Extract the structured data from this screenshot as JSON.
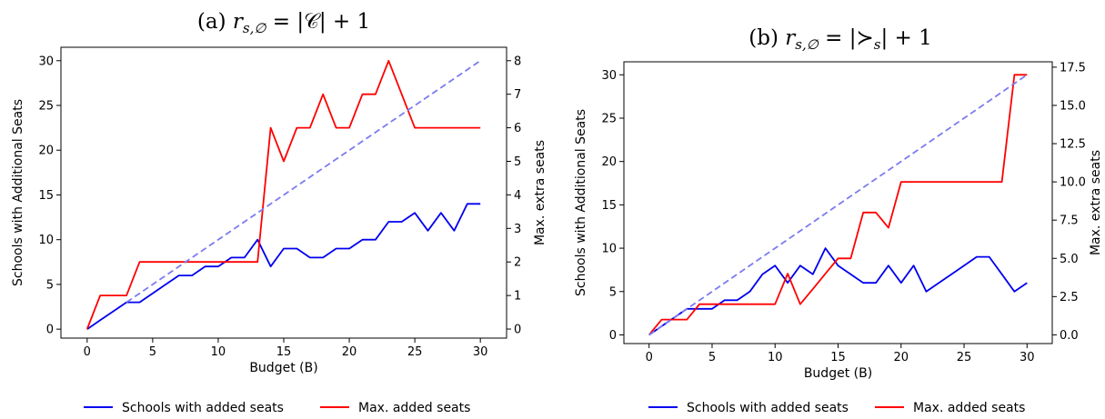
{
  "chart_data": [
    {
      "type": "line",
      "title": "(a) r_{s,∅} = |𝒞| + 1",
      "title_parts": {
        "prefix": "(a) ",
        "sym": "r",
        "sub": "s,∅",
        "rest": " = |𝒞| + 1"
      },
      "xlabel": "Budget (B)",
      "ylabel": "Schools with Additional Seats",
      "y2label": "Max. extra seats",
      "xlim": [
        -2,
        32
      ],
      "ylim": [
        -1,
        31.5
      ],
      "y2lim": [
        -0.27,
        8.4
      ],
      "xticks": [
        0,
        5,
        10,
        15,
        20,
        25,
        30
      ],
      "yticks": [
        0,
        5,
        10,
        15,
        20,
        25,
        30
      ],
      "y2ticks": [
        0,
        1,
        2,
        3,
        4,
        5,
        6,
        7,
        8
      ],
      "y2tick_labels": [
        "0",
        "1",
        "2",
        "3",
        "4",
        "5",
        "6",
        "7",
        "8"
      ],
      "x": [
        0,
        1,
        2,
        3,
        4,
        5,
        6,
        7,
        8,
        9,
        10,
        11,
        12,
        13,
        14,
        15,
        16,
        17,
        18,
        19,
        20,
        21,
        22,
        23,
        24,
        25,
        26,
        27,
        28,
        29,
        30
      ],
      "series": [
        {
          "name": "Schools with added seats",
          "color": "#0000ee",
          "axis": "left",
          "values": [
            0,
            1,
            2,
            3,
            3,
            4,
            5,
            6,
            6,
            7,
            7,
            8,
            8,
            10,
            7,
            9,
            9,
            8,
            8,
            9,
            9,
            10,
            10,
            12,
            12,
            13,
            11,
            13,
            11,
            14,
            14
          ]
        },
        {
          "name": "Max. added seats",
          "color": "#ff0000",
          "axis": "right",
          "values": [
            0,
            1,
            1,
            1,
            2,
            2,
            2,
            2,
            2,
            2,
            2,
            2,
            2,
            2,
            6,
            5,
            6,
            6,
            7,
            6,
            6,
            7,
            7,
            8,
            7,
            6,
            6,
            6,
            6,
            6,
            6
          ]
        },
        {
          "name": "",
          "color": "#7b7bf2",
          "axis": "left",
          "dashed": true,
          "points": [
            [
              3,
              3
            ],
            [
              30,
              30
            ]
          ]
        }
      ]
    },
    {
      "type": "line",
      "title": "(b) r_{s,∅} = |≻_s| + 1",
      "title_parts": {
        "prefix": "(b) ",
        "sym": "r",
        "sub": "s,∅",
        "rest": " = |≻",
        "sub2": "s",
        "rest2": "| + 1"
      },
      "xlabel": "Budget (B)",
      "ylabel": "Schools with Additional Seats",
      "y2label": "Max. extra seats",
      "xlim": [
        -2,
        32
      ],
      "ylim": [
        -1,
        31.5
      ],
      "y2lim": [
        -0.57,
        17.85
      ],
      "xticks": [
        0,
        5,
        10,
        15,
        20,
        25,
        30
      ],
      "yticks": [
        0,
        5,
        10,
        15,
        20,
        25,
        30
      ],
      "y2ticks": [
        0,
        2.5,
        5,
        7.5,
        10,
        12.5,
        15,
        17.5
      ],
      "y2tick_labels": [
        "0.0",
        "2.5",
        "5.0",
        "7.5",
        "10.0",
        "12.5",
        "15.0",
        "17.5"
      ],
      "x": [
        0,
        1,
        2,
        3,
        4,
        5,
        6,
        7,
        8,
        9,
        10,
        11,
        12,
        13,
        14,
        15,
        16,
        17,
        18,
        19,
        20,
        21,
        22,
        23,
        24,
        25,
        26,
        27,
        28,
        29,
        30
      ],
      "series": [
        {
          "name": "Schools with added seats",
          "color": "#0000ee",
          "axis": "left",
          "values": [
            0,
            1,
            2,
            3,
            3,
            3,
            4,
            4,
            5,
            7,
            8,
            6,
            8,
            7,
            10,
            8,
            7,
            6,
            6,
            8,
            6,
            8,
            5,
            6,
            7,
            8,
            9,
            9,
            7,
            5,
            6
          ]
        },
        {
          "name": "Max. added seats",
          "color": "#ff0000",
          "axis": "right",
          "values": [
            0,
            1,
            1,
            1,
            2,
            2,
            2,
            2,
            2,
            2,
            2,
            4,
            2,
            3,
            4,
            5,
            5,
            8,
            8,
            7,
            10,
            10,
            10,
            10,
            10,
            10,
            10,
            10,
            10,
            17,
            17
          ]
        },
        {
          "name": "",
          "color": "#7b7bf2",
          "axis": "left",
          "dashed": true,
          "points": [
            [
              0,
              0
            ],
            [
              30,
              30
            ]
          ]
        }
      ]
    }
  ]
}
